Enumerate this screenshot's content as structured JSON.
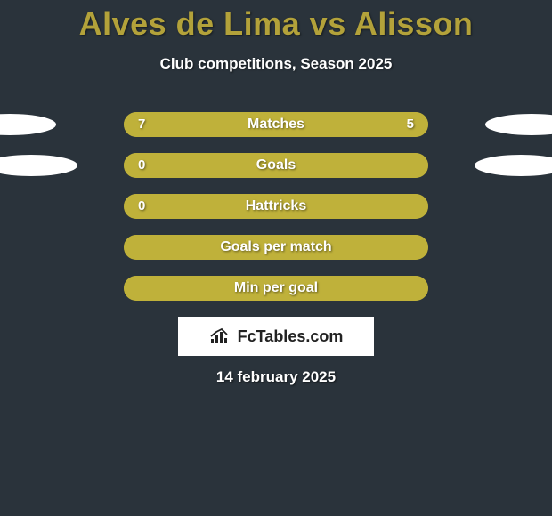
{
  "background_color": "#2a333b",
  "title": "Alves de Lima vs Alisson",
  "title_color": "#b3a23a",
  "subtitle": "Club competitions, Season 2025",
  "date": "14 february 2025",
  "bar_track_color": "#888832",
  "bar_fill_color": "#bfb13a",
  "ellipse_color": "#ffffff",
  "logo_text": "FcTables.com",
  "rows": [
    {
      "label": "Matches",
      "left": "7",
      "right": "5",
      "fill_pct": 100,
      "show_left_ellipse": true,
      "show_right_ellipse": true,
      "left_ellipse_shift": -12
    },
    {
      "label": "Goals",
      "left": "0",
      "right": "",
      "fill_pct": 100,
      "show_left_ellipse": true,
      "show_right_ellipse": true,
      "left_ellipse_shift": 12,
      "right_ellipse_shift": 12
    },
    {
      "label": "Hattricks",
      "left": "0",
      "right": "",
      "fill_pct": 100,
      "show_left_ellipse": false,
      "show_right_ellipse": false
    },
    {
      "label": "Goals per match",
      "left": "",
      "right": "",
      "fill_pct": 100,
      "show_left_ellipse": false,
      "show_right_ellipse": false
    },
    {
      "label": "Min per goal",
      "left": "",
      "right": "",
      "fill_pct": 100,
      "show_left_ellipse": false,
      "show_right_ellipse": false
    }
  ]
}
